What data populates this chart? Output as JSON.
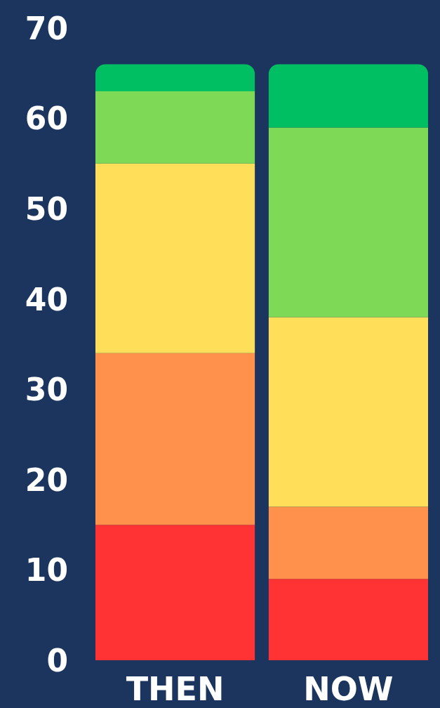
{
  "chart_data": {
    "type": "bar",
    "stacked": true,
    "categories": [
      "THEN",
      "NOW"
    ],
    "series": [
      {
        "color": "#ff3333",
        "values": [
          15,
          9
        ]
      },
      {
        "color": "#ff914d",
        "values": [
          19,
          8
        ]
      },
      {
        "color": "#ffde59",
        "values": [
          21,
          21
        ]
      },
      {
        "color": "#7ed957",
        "values": [
          8,
          21
        ]
      },
      {
        "color": "#00bf63",
        "values": [
          3,
          7
        ]
      }
    ],
    "ylim": [
      0,
      70
    ],
    "yticks": [
      0,
      10,
      20,
      30,
      40,
      50,
      60,
      70
    ]
  }
}
